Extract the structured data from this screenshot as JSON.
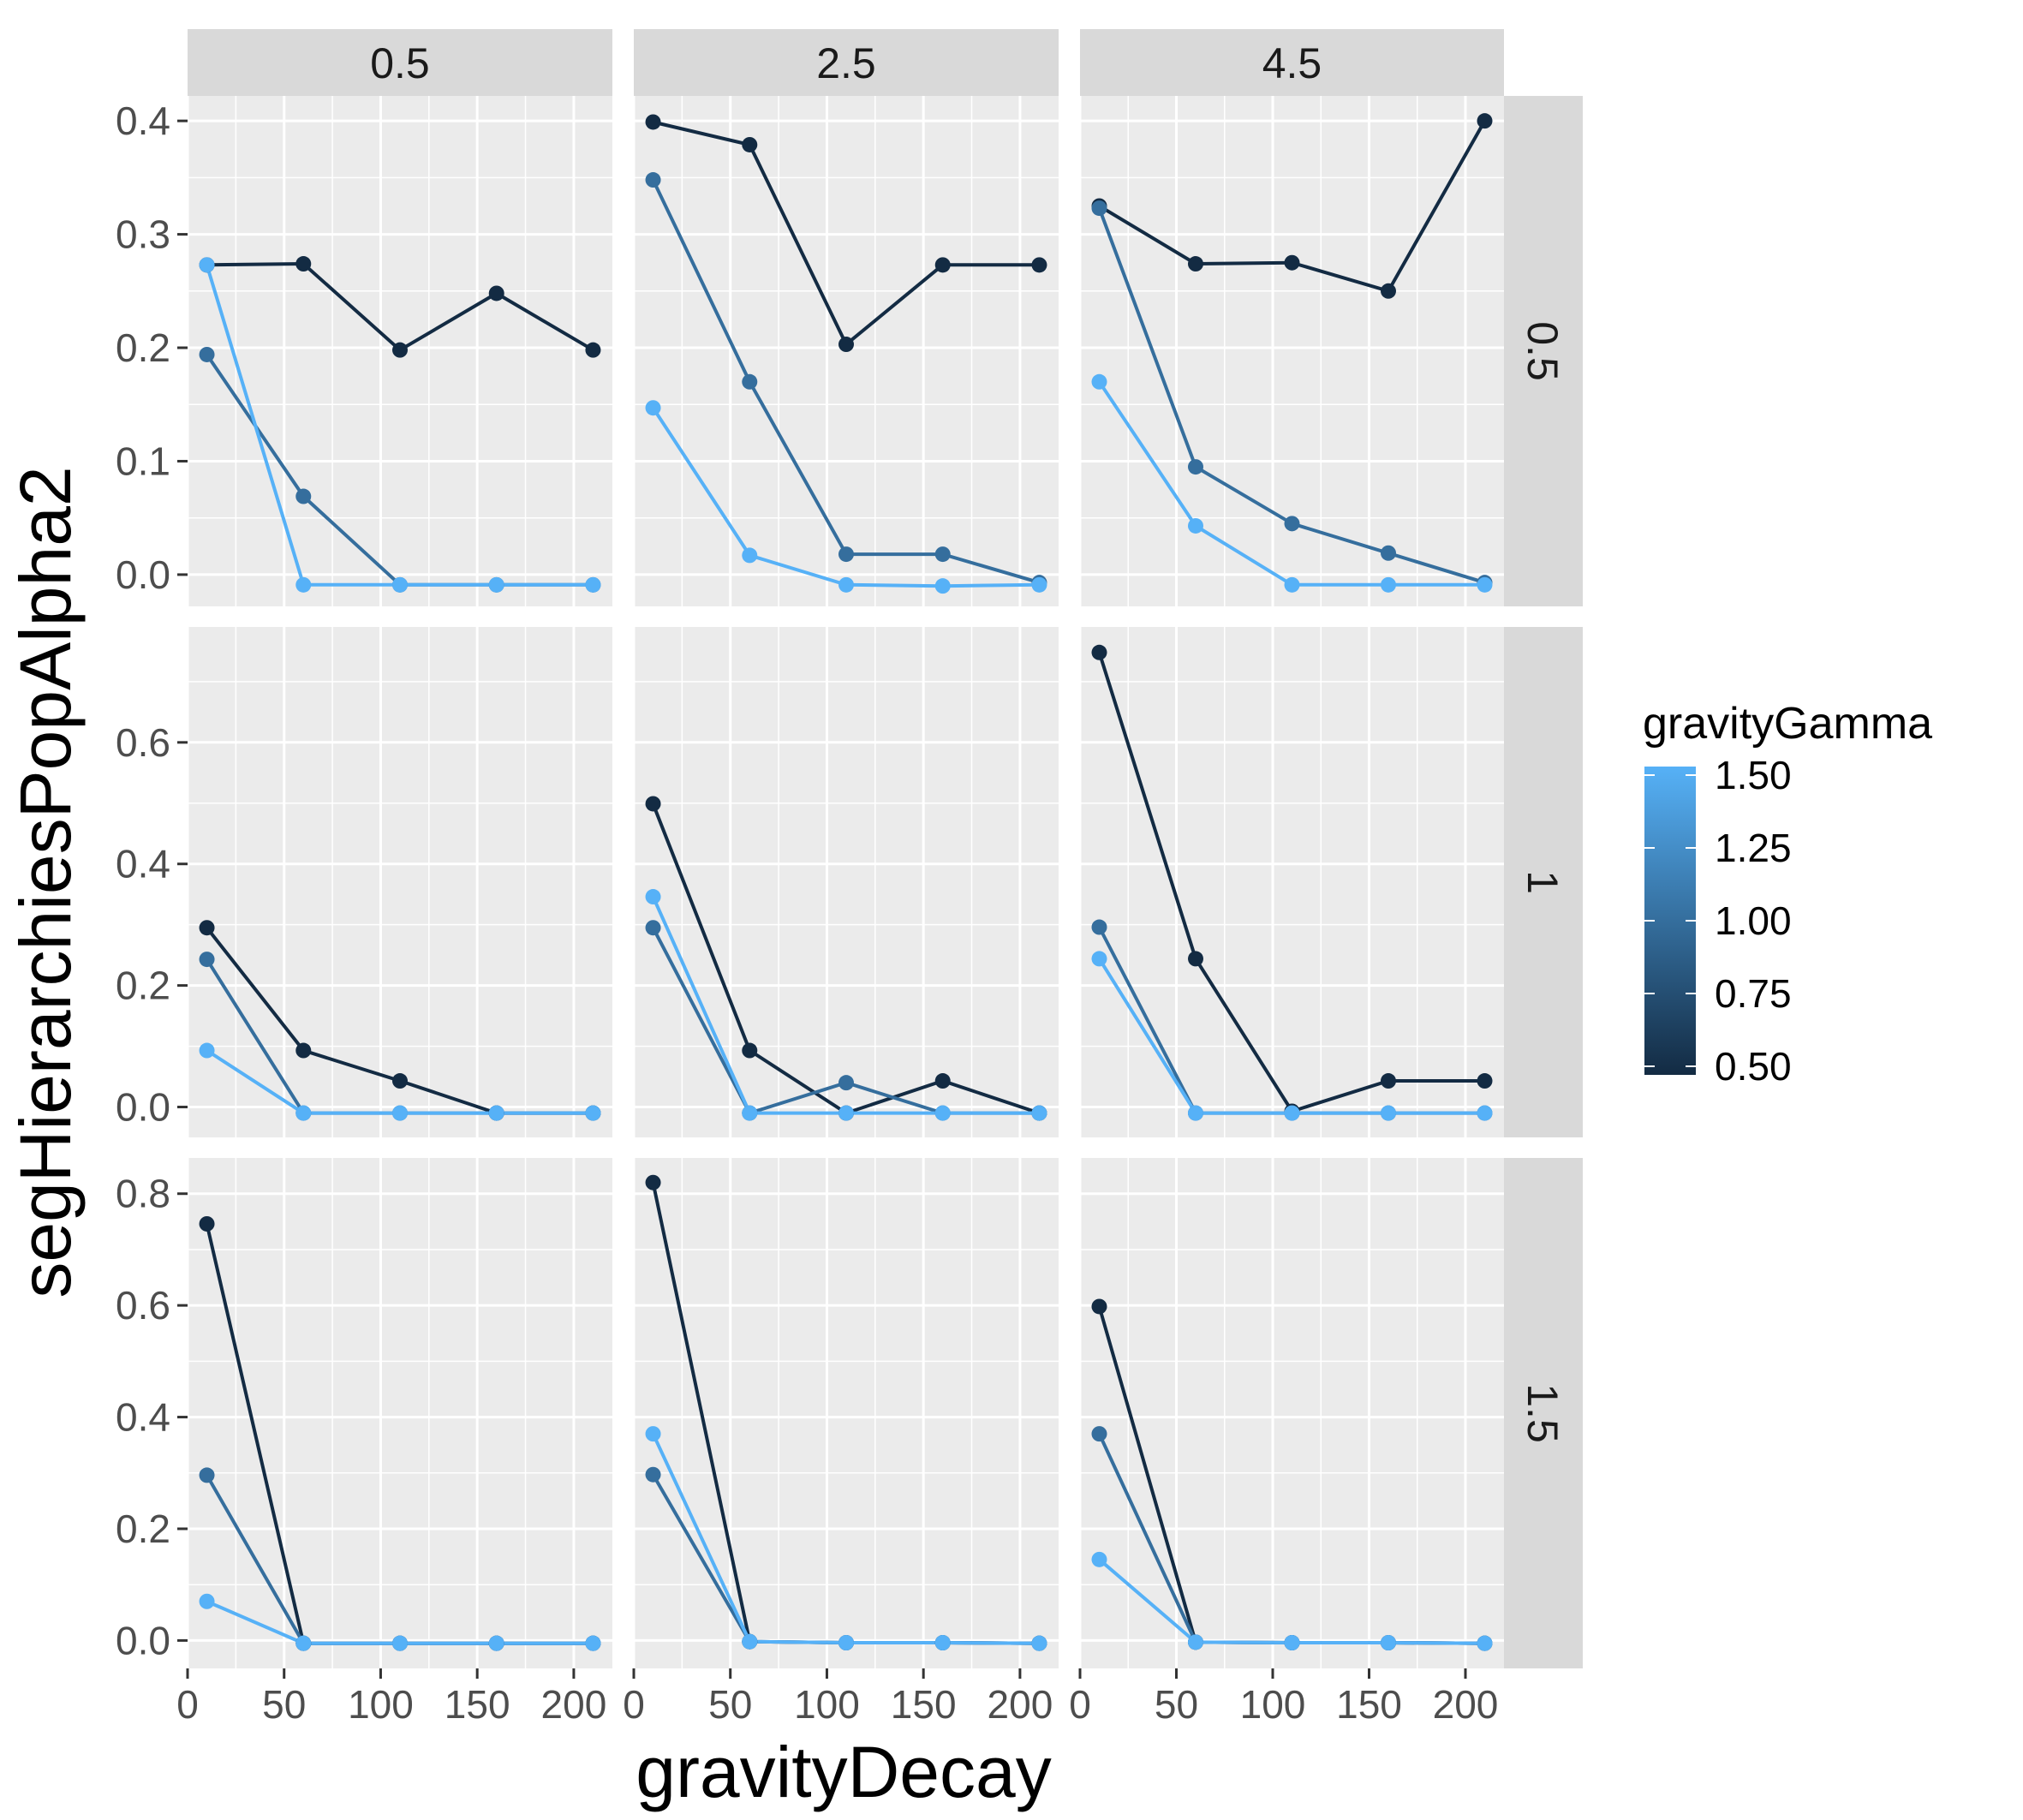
{
  "chart_data": {
    "type": "line",
    "xlabel": "gravityDecay",
    "ylabel": "segHierarchiesPopAlpha2",
    "col_facets": [
      "0.5",
      "2.5",
      "4.5"
    ],
    "row_facets": [
      "0.5",
      "1",
      "1.5"
    ],
    "x": [
      10,
      60,
      110,
      160,
      210
    ],
    "xlim": [
      0,
      220
    ],
    "x_ticks": [
      {
        "value": 0,
        "label": "0"
      },
      {
        "value": 50,
        "label": "50"
      },
      {
        "value": 100,
        "label": "100"
      },
      {
        "value": 150,
        "label": "150"
      },
      {
        "value": 200,
        "label": "200"
      }
    ],
    "row_axes": [
      {
        "ylim": [
          -0.028,
          0.422
        ],
        "ticks": [
          {
            "value": 0.0,
            "label": "0.0"
          },
          {
            "value": 0.1,
            "label": "0.1"
          },
          {
            "value": 0.2,
            "label": "0.2"
          },
          {
            "value": 0.3,
            "label": "0.3"
          },
          {
            "value": 0.4,
            "label": "0.4"
          }
        ]
      },
      {
        "ylim": [
          -0.05,
          0.79
        ],
        "ticks": [
          {
            "value": 0.0,
            "label": "0.0"
          },
          {
            "value": 0.2,
            "label": "0.2"
          },
          {
            "value": 0.4,
            "label": "0.4"
          },
          {
            "value": 0.6,
            "label": "0.6"
          }
        ]
      },
      {
        "ylim": [
          -0.05,
          0.864
        ],
        "ticks": [
          {
            "value": 0.0,
            "label": "0.0"
          },
          {
            "value": 0.2,
            "label": "0.2"
          },
          {
            "value": 0.4,
            "label": "0.4"
          },
          {
            "value": 0.6,
            "label": "0.6"
          },
          {
            "value": 0.8,
            "label": "0.8"
          }
        ]
      }
    ],
    "grid": true,
    "legend": {
      "title": "gravityGamma",
      "placement": "right",
      "type": "colorbar",
      "range": [
        0.5,
        1.5
      ],
      "low_color": "#132B43",
      "high_color": "#56B1F7",
      "ticks": [
        {
          "value": 0.5,
          "label": "0.50"
        },
        {
          "value": 0.75,
          "label": "0.75"
        },
        {
          "value": 1.0,
          "label": "1.00"
        },
        {
          "value": 1.25,
          "label": "1.25"
        },
        {
          "value": 1.5,
          "label": "1.50"
        }
      ]
    },
    "panels": [
      {
        "row": 0,
        "col": 0,
        "series": [
          {
            "gamma": 0.5,
            "values": [
              0.273,
              0.274,
              0.198,
              0.248,
              0.198
            ]
          },
          {
            "gamma": 1.0,
            "values": [
              0.194,
              0.069,
              -0.009,
              -0.009,
              -0.009
            ]
          },
          {
            "gamma": 1.5,
            "values": [
              0.273,
              -0.009,
              -0.009,
              -0.009,
              -0.009
            ]
          }
        ]
      },
      {
        "row": 0,
        "col": 1,
        "series": [
          {
            "gamma": 0.5,
            "values": [
              0.399,
              0.379,
              0.203,
              0.273,
              0.273
            ]
          },
          {
            "gamma": 1.0,
            "values": [
              0.348,
              0.17,
              0.018,
              0.018,
              -0.007
            ]
          },
          {
            "gamma": 1.5,
            "values": [
              0.147,
              0.017,
              -0.009,
              -0.01,
              -0.009
            ]
          }
        ]
      },
      {
        "row": 0,
        "col": 2,
        "series": [
          {
            "gamma": 0.5,
            "values": [
              0.325,
              0.274,
              0.275,
              0.25,
              0.4
            ]
          },
          {
            "gamma": 1.0,
            "values": [
              0.323,
              0.095,
              0.045,
              0.019,
              -0.007
            ]
          },
          {
            "gamma": 1.5,
            "values": [
              0.17,
              0.043,
              -0.009,
              -0.009,
              -0.009
            ]
          }
        ]
      },
      {
        "row": 1,
        "col": 0,
        "series": [
          {
            "gamma": 0.5,
            "values": [
              0.295,
              0.093,
              0.043,
              -0.01,
              -0.01
            ]
          },
          {
            "gamma": 1.0,
            "values": [
              0.243,
              -0.01,
              -0.01,
              -0.01,
              -0.01
            ]
          },
          {
            "gamma": 1.5,
            "values": [
              0.093,
              -0.01,
              -0.01,
              -0.01,
              -0.01
            ]
          }
        ]
      },
      {
        "row": 1,
        "col": 1,
        "series": [
          {
            "gamma": 0.5,
            "values": [
              0.499,
              0.093,
              -0.01,
              0.043,
              -0.01
            ]
          },
          {
            "gamma": 1.0,
            "values": [
              0.295,
              -0.01,
              0.04,
              -0.01,
              -0.01
            ]
          },
          {
            "gamma": 1.5,
            "values": [
              0.346,
              -0.01,
              -0.01,
              -0.01,
              -0.01
            ]
          }
        ]
      },
      {
        "row": 1,
        "col": 2,
        "series": [
          {
            "gamma": 0.5,
            "values": [
              0.748,
              0.244,
              -0.007,
              0.043,
              0.043
            ]
          },
          {
            "gamma": 1.0,
            "values": [
              0.296,
              -0.01,
              -0.01,
              -0.01,
              -0.01
            ]
          },
          {
            "gamma": 1.5,
            "values": [
              0.244,
              -0.01,
              -0.01,
              -0.01,
              -0.01
            ]
          }
        ]
      },
      {
        "row": 2,
        "col": 0,
        "series": [
          {
            "gamma": 0.5,
            "values": [
              0.746,
              -0.005,
              -0.005,
              -0.005,
              -0.005
            ]
          },
          {
            "gamma": 1.0,
            "values": [
              0.296,
              -0.005,
              -0.005,
              -0.005,
              -0.005
            ]
          },
          {
            "gamma": 1.5,
            "values": [
              0.07,
              -0.005,
              -0.005,
              -0.005,
              -0.005
            ]
          }
        ]
      },
      {
        "row": 2,
        "col": 1,
        "series": [
          {
            "gamma": 0.5,
            "values": [
              0.82,
              -0.002,
              -0.004,
              -0.004,
              -0.005
            ]
          },
          {
            "gamma": 1.0,
            "values": [
              0.297,
              -0.002,
              -0.004,
              -0.004,
              -0.005
            ]
          },
          {
            "gamma": 1.5,
            "values": [
              0.37,
              -0.002,
              -0.004,
              -0.004,
              -0.005
            ]
          }
        ]
      },
      {
        "row": 2,
        "col": 2,
        "series": [
          {
            "gamma": 0.5,
            "values": [
              0.598,
              -0.003,
              -0.004,
              -0.004,
              -0.005
            ]
          },
          {
            "gamma": 1.0,
            "values": [
              0.37,
              -0.003,
              -0.004,
              -0.004,
              -0.005
            ]
          },
          {
            "gamma": 1.5,
            "values": [
              0.145,
              -0.003,
              -0.004,
              -0.004,
              -0.005
            ]
          }
        ]
      }
    ]
  }
}
